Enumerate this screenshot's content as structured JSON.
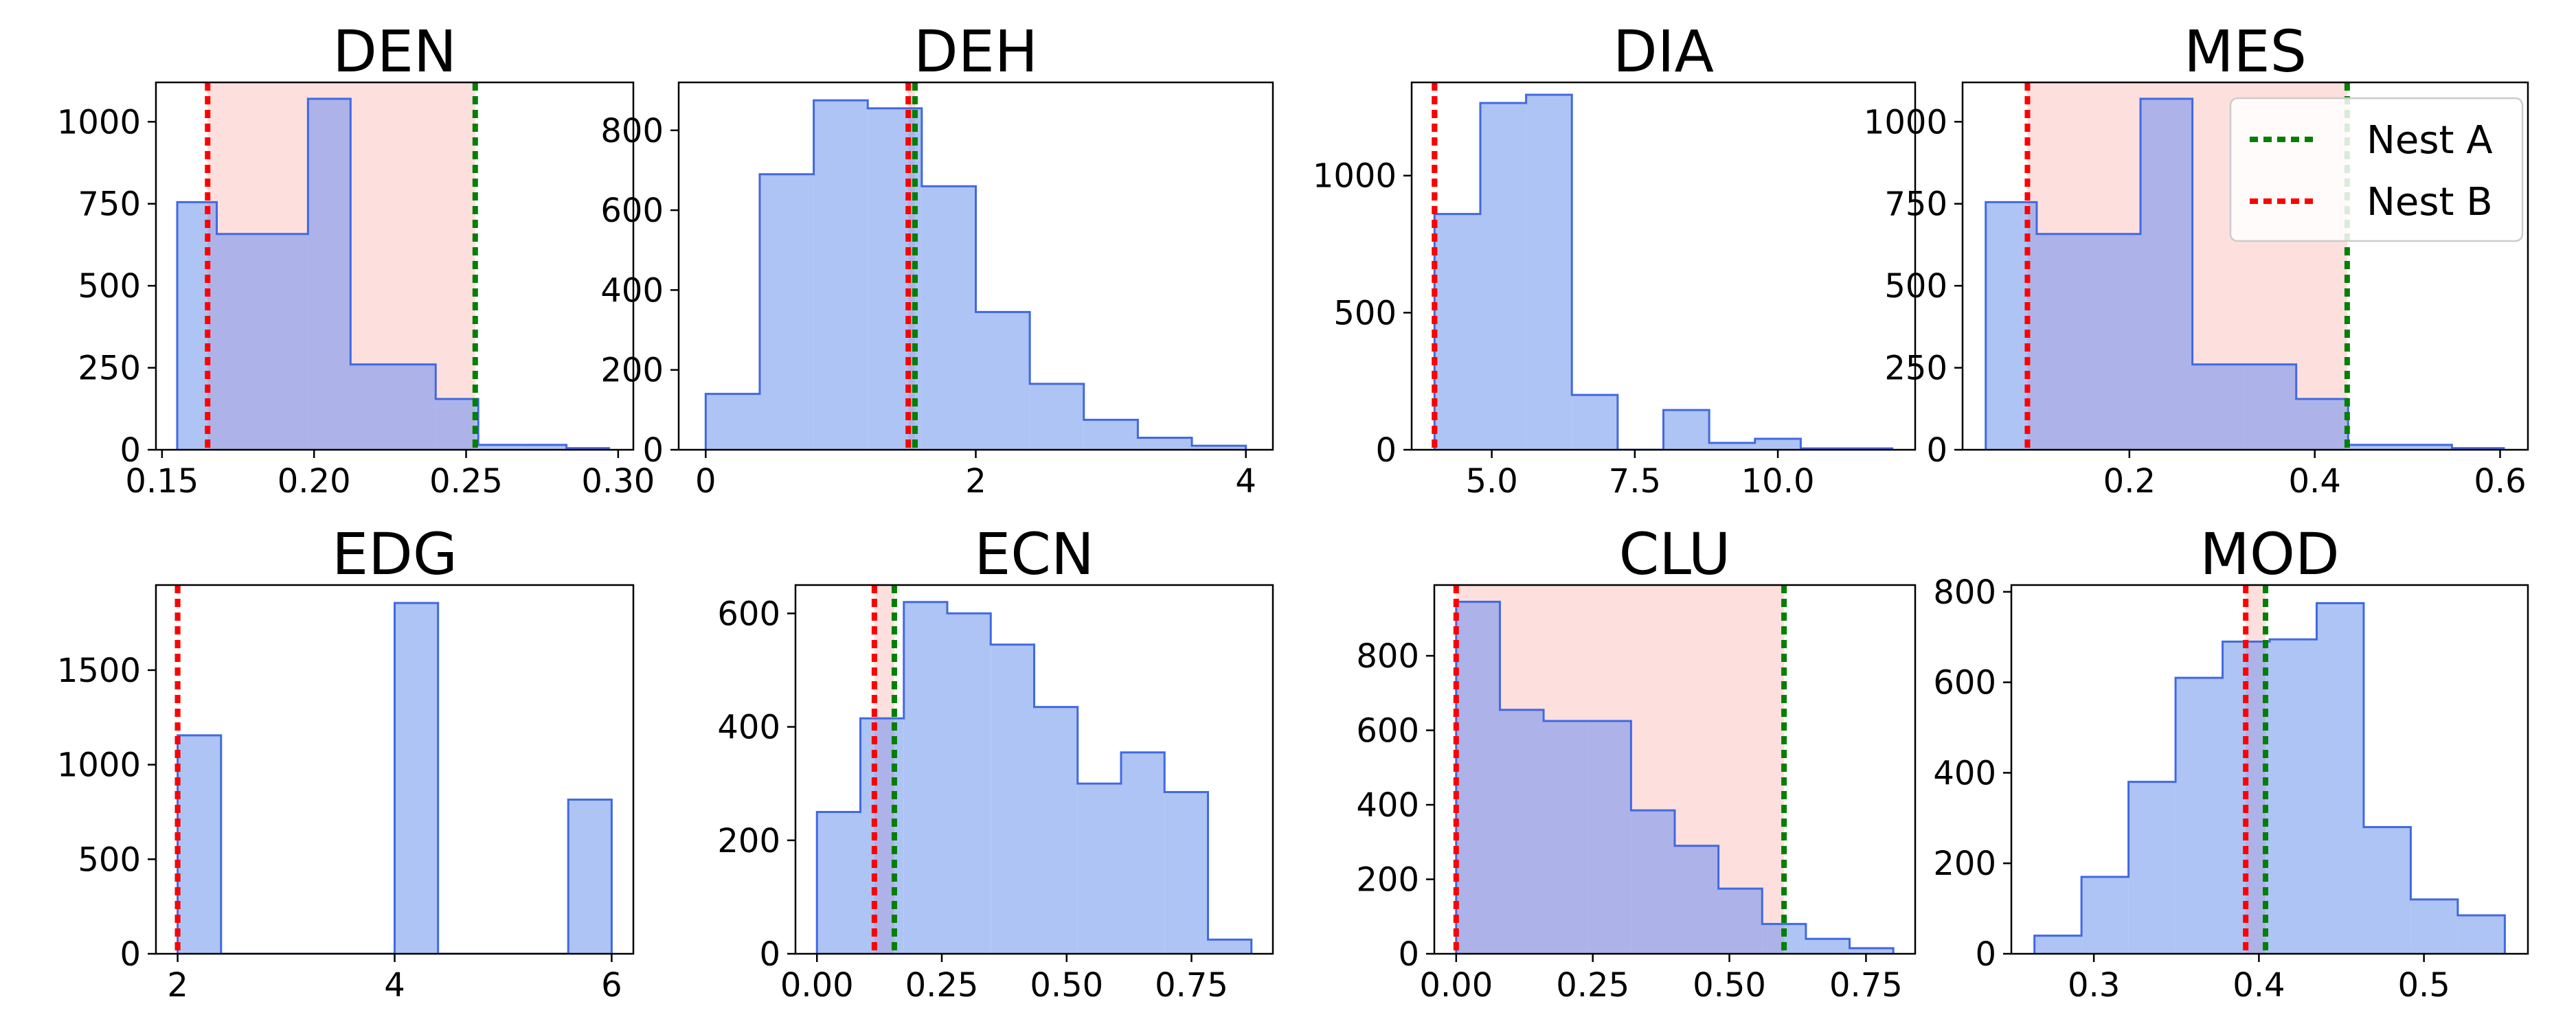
{
  "colors": {
    "bar_fill": "#aec4f4",
    "bar_edge": "#4169e1",
    "shade": "#fde0de",
    "overlap": "#adb3e8",
    "nest_a": "#008000",
    "nest_b": "#ff0000"
  },
  "legend": {
    "placement": "upper-right of MES panel",
    "entries": [
      {
        "label": "Nest A",
        "color": "#008000"
      },
      {
        "label": "Nest B",
        "color": "#ff0000"
      }
    ]
  },
  "chart_data": [
    {
      "type": "bar",
      "subtype": "histogram",
      "title": "DEN",
      "bins": [
        0.155,
        0.168,
        0.183,
        0.198,
        0.212,
        0.226,
        0.24,
        0.254,
        0.268,
        0.283,
        0.297
      ],
      "counts": [
        755,
        658,
        658,
        1070,
        260,
        260,
        155,
        15,
        15,
        5
      ],
      "xlim": [
        0.148,
        0.305
      ],
      "ylim": [
        0,
        1120
      ],
      "xticks": [
        0.15,
        0.2,
        0.25,
        0.3
      ],
      "xtick_labels": [
        "0.15",
        "0.20",
        "0.25",
        "0.30"
      ],
      "yticks": [
        0,
        250,
        500,
        750,
        1000
      ],
      "ytick_labels": [
        "0",
        "250",
        "500",
        "750",
        "1000"
      ],
      "nest_a": 0.253,
      "nest_b": 0.165,
      "shade": [
        0.165,
        0.253
      ]
    },
    {
      "type": "bar",
      "subtype": "histogram",
      "title": "DEH",
      "bins": [
        0.0,
        0.4,
        0.8,
        1.2,
        1.6,
        2.0,
        2.4,
        2.8,
        3.2,
        3.6,
        4.0
      ],
      "counts": [
        140,
        690,
        875,
        855,
        660,
        345,
        165,
        75,
        30,
        10
      ],
      "xlim": [
        -0.2,
        4.2
      ],
      "ylim": [
        0,
        920
      ],
      "xticks": [
        0,
        2,
        4
      ],
      "xtick_labels": [
        "0",
        "2",
        "4"
      ],
      "yticks": [
        0,
        200,
        400,
        600,
        800
      ],
      "ytick_labels": [
        "0",
        "200",
        "400",
        "600",
        "800"
      ],
      "nest_a": 1.55,
      "nest_b": 1.5,
      "shade": [
        1.5,
        1.55
      ]
    },
    {
      "type": "bar",
      "subtype": "histogram",
      "title": "DIA",
      "bins": [
        4,
        4.8,
        5.6,
        6.4,
        7.2,
        8.0,
        8.8,
        9.6,
        10.4,
        11.2,
        12.0
      ],
      "counts": [
        860,
        1265,
        1295,
        200,
        0,
        145,
        25,
        40,
        5,
        5
      ],
      "xlim": [
        3.6,
        12.4
      ],
      "ylim": [
        0,
        1340
      ],
      "xticks": [
        5.0,
        7.5,
        10.0
      ],
      "xtick_labels": [
        "5.0",
        "7.5",
        "10.0"
      ],
      "yticks": [
        0,
        500,
        1000
      ],
      "ytick_labels": [
        "0",
        "500",
        "1000"
      ],
      "nest_a": 4.0,
      "nest_b": 4.0,
      "shade": [
        4.0,
        4.0
      ]
    },
    {
      "type": "bar",
      "subtype": "histogram",
      "title": "MES",
      "bins": [
        0.045,
        0.1,
        0.157,
        0.212,
        0.268,
        0.324,
        0.38,
        0.436,
        0.492,
        0.548,
        0.604
      ],
      "counts": [
        755,
        658,
        658,
        1070,
        260,
        260,
        155,
        15,
        15,
        5
      ],
      "xlim": [
        0.02,
        0.63
      ],
      "ylim": [
        0,
        1120
      ],
      "xticks": [
        0.2,
        0.4,
        0.6
      ],
      "xtick_labels": [
        "0.2",
        "0.4",
        "0.6"
      ],
      "yticks": [
        0,
        250,
        500,
        750,
        1000
      ],
      "ytick_labels": [
        "0",
        "250",
        "500",
        "750",
        "1000"
      ],
      "nest_a": 0.435,
      "nest_b": 0.09,
      "shade": [
        0.09,
        0.435
      ]
    },
    {
      "type": "bar",
      "subtype": "histogram",
      "title": "EDG",
      "bins": [
        2.0,
        2.4,
        2.8,
        3.2,
        3.6,
        4.0,
        4.4,
        4.8,
        5.2,
        5.6,
        6.0
      ],
      "counts": [
        1155,
        0,
        0,
        0,
        0,
        1855,
        0,
        0,
        0,
        815
      ],
      "xlim": [
        1.8,
        6.2
      ],
      "ylim": [
        0,
        1950
      ],
      "xticks": [
        2,
        4,
        6
      ],
      "xtick_labels": [
        "2",
        "4",
        "6"
      ],
      "yticks": [
        0,
        500,
        1000,
        1500
      ],
      "ytick_labels": [
        "0",
        "500",
        "1000",
        "1500"
      ],
      "nest_a": 2.0,
      "nest_b": 2.0,
      "shade": [
        2.0,
        2.0
      ]
    },
    {
      "type": "bar",
      "subtype": "histogram",
      "title": "ECN",
      "bins": [
        0.0,
        0.087,
        0.174,
        0.261,
        0.348,
        0.435,
        0.522,
        0.609,
        0.696,
        0.783,
        0.87
      ],
      "counts": [
        250,
        415,
        620,
        600,
        545,
        435,
        300,
        355,
        285,
        25
      ],
      "xlim": [
        -0.043,
        0.913
      ],
      "ylim": [
        0,
        650
      ],
      "xticks": [
        0.0,
        0.25,
        0.5,
        0.75
      ],
      "xtick_labels": [
        "0.00",
        "0.25",
        "0.50",
        "0.75"
      ],
      "yticks": [
        0,
        200,
        400,
        600
      ],
      "ytick_labels": [
        "0",
        "200",
        "400",
        "600"
      ],
      "nest_a": 0.155,
      "nest_b": 0.115,
      "shade": [
        0.115,
        0.155
      ]
    },
    {
      "type": "bar",
      "subtype": "histogram",
      "title": "CLU",
      "bins": [
        0.0,
        0.08,
        0.16,
        0.24,
        0.32,
        0.4,
        0.48,
        0.56,
        0.64,
        0.72,
        0.8
      ],
      "counts": [
        945,
        655,
        625,
        625,
        385,
        290,
        175,
        80,
        40,
        15
      ],
      "xlim": [
        -0.04,
        0.84
      ],
      "ylim": [
        0,
        990
      ],
      "xticks": [
        0.0,
        0.25,
        0.5,
        0.75
      ],
      "xtick_labels": [
        "0.00",
        "0.25",
        "0.50",
        "0.75"
      ],
      "yticks": [
        0,
        200,
        400,
        600,
        800
      ],
      "ytick_labels": [
        "0",
        "200",
        "400",
        "600",
        "800"
      ],
      "nest_a": 0.6,
      "nest_b": 0.0,
      "shade": [
        0.0,
        0.6
      ]
    },
    {
      "type": "bar",
      "subtype": "histogram",
      "title": "MOD",
      "bins": [
        0.264,
        0.2925,
        0.321,
        0.3495,
        0.378,
        0.4065,
        0.435,
        0.4635,
        0.492,
        0.5205,
        0.549
      ],
      "counts": [
        40,
        170,
        380,
        610,
        690,
        695,
        775,
        280,
        120,
        85
      ],
      "xlim": [
        0.25,
        0.563
      ],
      "ylim": [
        0,
        815
      ],
      "xticks": [
        0.3,
        0.4,
        0.5
      ],
      "xtick_labels": [
        "0.3",
        "0.4",
        "0.5"
      ],
      "yticks": [
        0,
        200,
        400,
        600,
        800
      ],
      "ytick_labels": [
        "0",
        "200",
        "400",
        "600",
        "800"
      ],
      "nest_a": 0.404,
      "nest_b": 0.392,
      "shade": [
        0.392,
        0.404
      ]
    }
  ]
}
